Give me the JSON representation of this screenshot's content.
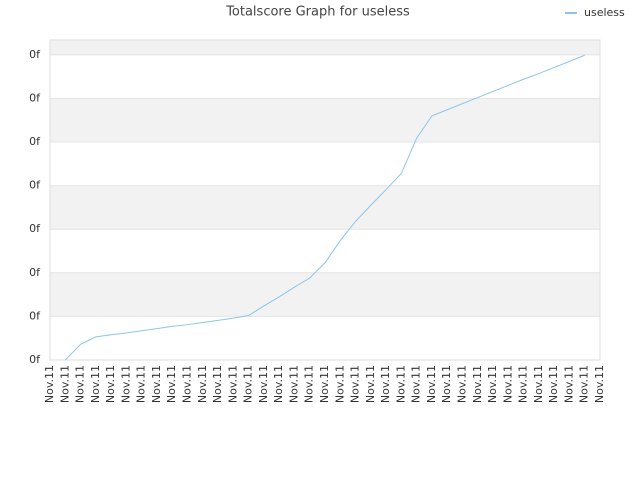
{
  "chart_data": {
    "type": "line",
    "title": "Totalscore Graph for useless",
    "categories": [
      "Nov.11",
      "Nov.11",
      "Nov.11",
      "Nov.11",
      "Nov.11",
      "Nov.11",
      "Nov.11",
      "Nov.11",
      "Nov.11",
      "Nov.11",
      "Nov.11",
      "Nov.11",
      "Nov.11",
      "Nov.11",
      "Nov.11",
      "Nov.11",
      "Nov.11",
      "Nov.11",
      "Nov.11",
      "Nov.11",
      "Nov.11",
      "Nov.11",
      "Nov.11",
      "Nov.11",
      "Nov.11",
      "Nov.11",
      "Nov.11",
      "Nov.11",
      "Nov.11",
      "Nov.11",
      "Nov.11",
      "Nov.11",
      "Nov.11",
      "Nov.11",
      "Nov.11",
      "Nov.11",
      "Nov.11"
    ],
    "series": [
      {
        "name": "useless",
        "color": "#8cc4ec",
        "values": [
          null,
          0.0,
          0.36,
          0.53,
          0.58,
          0.62,
          0.67,
          0.72,
          0.77,
          0.81,
          0.86,
          0.91,
          0.96,
          1.02,
          1.24,
          1.45,
          1.67,
          1.88,
          2.23,
          2.74,
          3.18,
          3.55,
          3.91,
          4.28,
          5.09,
          5.6,
          5.74,
          5.88,
          6.02,
          6.16,
          6.3,
          6.44,
          6.57,
          6.71,
          6.85,
          6.99,
          null
        ]
      }
    ],
    "ylim": [
      0,
      7.34
    ],
    "yticks": [
      {
        "value": 0,
        "label": "0f"
      },
      {
        "value": 1,
        "label": "0f"
      },
      {
        "value": 2,
        "label": "0f"
      },
      {
        "value": 3,
        "label": "0f"
      },
      {
        "value": 4,
        "label": "0f"
      },
      {
        "value": 5,
        "label": "0f"
      },
      {
        "value": 6,
        "label": "0f"
      },
      {
        "value": 7,
        "label": "0f"
      }
    ],
    "grid": true,
    "legend": "top-right"
  }
}
